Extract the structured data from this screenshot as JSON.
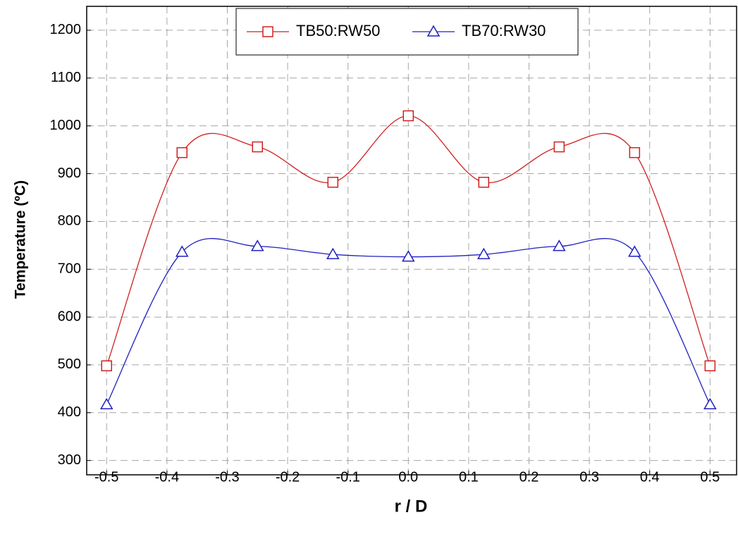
{
  "chart_data": {
    "type": "line",
    "x_label": "r / D",
    "y_label": "Temperature (ºC)",
    "x": [
      -0.5,
      -0.375,
      -0.25,
      -0.125,
      0,
      0.125,
      0.25,
      0.375,
      0.5
    ],
    "series": [
      {
        "name": "TB50:RW50",
        "color": "#d02020",
        "marker": "square",
        "values": [
          498,
          944,
          956,
          882,
          1021,
          882,
          956,
          944,
          498
        ]
      },
      {
        "name": "TB70:RW30",
        "color": "#2020c0",
        "marker": "triangle",
        "values": [
          417,
          736,
          748,
          731,
          726,
          731,
          748,
          736,
          417
        ]
      }
    ],
    "xlim": [
      -0.533,
      0.544
    ],
    "ylim": [
      270,
      1250
    ],
    "xticks": [
      -0.5,
      -0.4,
      -0.3,
      -0.2,
      -0.1,
      {
        "value": 0,
        "label": "0.0"
      },
      0.1,
      0.2,
      0.3,
      0.4,
      0.5
    ],
    "yticks": [
      300,
      400,
      500,
      600,
      700,
      800,
      900,
      1000,
      1100,
      1200
    ],
    "grid": true,
    "legend": "top"
  }
}
